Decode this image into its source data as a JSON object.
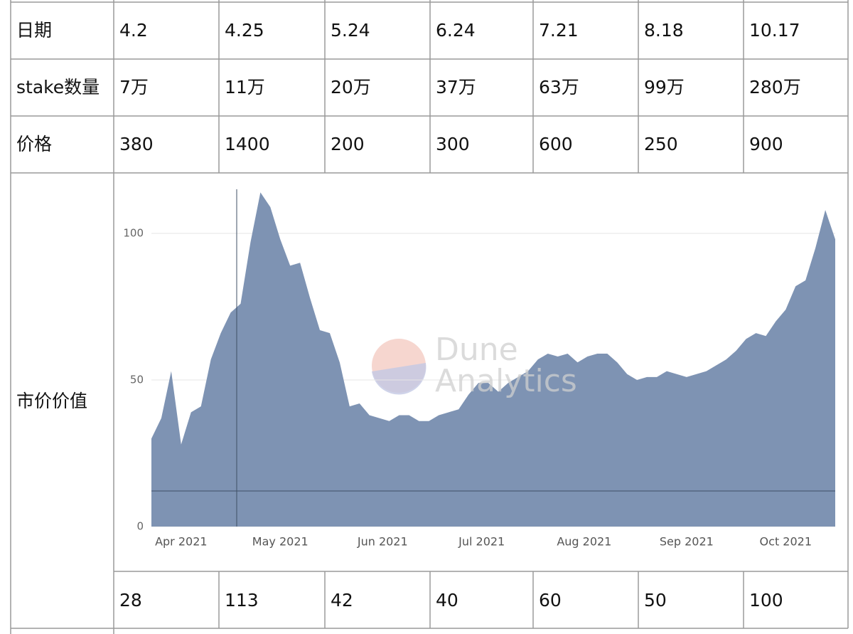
{
  "table": {
    "rows": [
      [
        "日期",
        "4.2",
        "4.25",
        "5.24",
        "6.24",
        "7.21",
        "8.18",
        "10.17"
      ],
      [
        "stake数量",
        "7万",
        "11万",
        "20万",
        "37万",
        "63万",
        "99万",
        "280万"
      ],
      [
        "价格",
        "380",
        "1400",
        "200",
        "300",
        "600",
        "250",
        "900"
      ]
    ],
    "chart_row_label": "市价价值",
    "value_row": [
      "28",
      "113",
      "42",
      "40",
      "60",
      "50",
      "100"
    ]
  },
  "chart_data": {
    "type": "area",
    "color": "#7e93b3",
    "watermark": [
      "Dune",
      "Analytics"
    ],
    "values": [
      30,
      37,
      53,
      28,
      39,
      41,
      57,
      66,
      73,
      76,
      97,
      114,
      109,
      98,
      89,
      90,
      78,
      67,
      66,
      56,
      41,
      42,
      38,
      37,
      36,
      38,
      38,
      36,
      36,
      38,
      39,
      40,
      45,
      49,
      49,
      46,
      49,
      51,
      53,
      57,
      59,
      58,
      59,
      56,
      58,
      59,
      59,
      56,
      52,
      50,
      51,
      51,
      53,
      52,
      51,
      52,
      53,
      55,
      57,
      60,
      64,
      66,
      65,
      70,
      74,
      82,
      84,
      95,
      108,
      98
    ],
    "xlim": [
      0,
      69
    ],
    "xticks": [
      {
        "value": 3,
        "label": "Apr 2021"
      },
      {
        "value": 13,
        "label": "May 2021"
      },
      {
        "value": 23.33,
        "label": "Jun 2021"
      },
      {
        "value": 33.33,
        "label": "Jul 2021"
      },
      {
        "value": 43.67,
        "label": "Aug 2021"
      },
      {
        "value": 54,
        "label": "Sep 2021"
      },
      {
        "value": 64,
        "label": "Oct 2021"
      }
    ],
    "ylim": [
      0,
      117
    ],
    "yticks": [
      0,
      50,
      100
    ],
    "grid": true
  }
}
